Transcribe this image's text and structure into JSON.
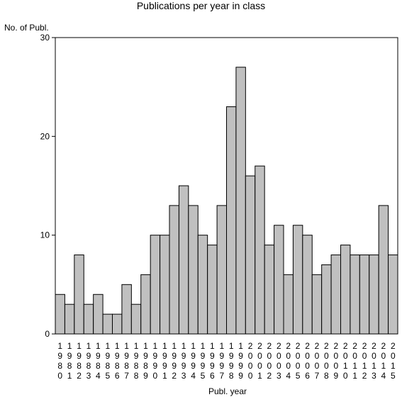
{
  "chart_data": {
    "type": "bar",
    "title": "Publications per year in class",
    "ylabel": "No. of Publ.",
    "xlabel": "Publ. year",
    "ylim": [
      0,
      30
    ],
    "yticks": [
      0,
      10,
      20,
      30
    ],
    "grid": false,
    "bar_color": "#c0c0c0",
    "categories": [
      "1980",
      "1981",
      "1982",
      "1983",
      "1984",
      "1985",
      "1986",
      "1987",
      "1988",
      "1989",
      "1990",
      "1991",
      "1992",
      "1993",
      "1994",
      "1995",
      "1996",
      "1997",
      "1998",
      "1999",
      "2000",
      "2001",
      "2002",
      "2003",
      "2004",
      "2005",
      "2006",
      "2007",
      "2008",
      "2009",
      "2010",
      "2011",
      "2012",
      "2013",
      "2014",
      "2015"
    ],
    "values": [
      4,
      3,
      8,
      3,
      4,
      2,
      2,
      5,
      3,
      6,
      10,
      10,
      13,
      15,
      13,
      10,
      9,
      13,
      23,
      27,
      16,
      17,
      9,
      11,
      6,
      11,
      10,
      6,
      7,
      8,
      9,
      8,
      8,
      8,
      13,
      8
    ]
  }
}
